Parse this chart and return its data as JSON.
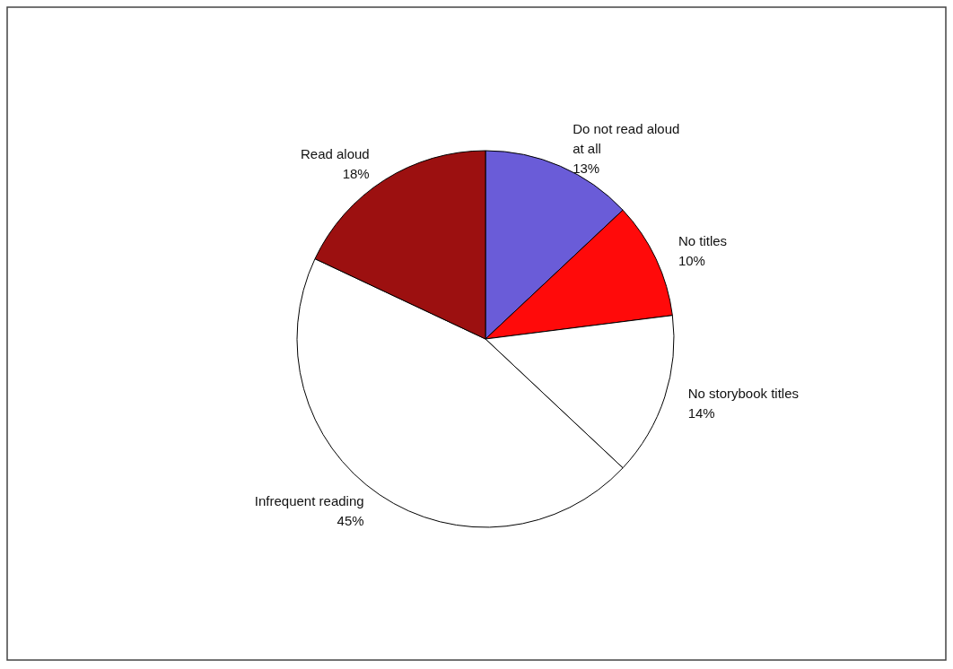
{
  "chart_data": {
    "type": "pie",
    "categories": [
      "Do not read aloud at all",
      "No titles",
      "No storybook titles",
      "Infrequent reading",
      "Read aloud"
    ],
    "values": [
      13,
      10,
      14,
      45,
      18
    ],
    "value_labels": [
      "13%",
      "10%",
      "14%",
      "45%",
      "18%"
    ],
    "colors": [
      "#6a5cd8",
      "#ff0a0a",
      "#ffffff",
      "#ffffff",
      "#9c1010"
    ],
    "legend": false
  }
}
